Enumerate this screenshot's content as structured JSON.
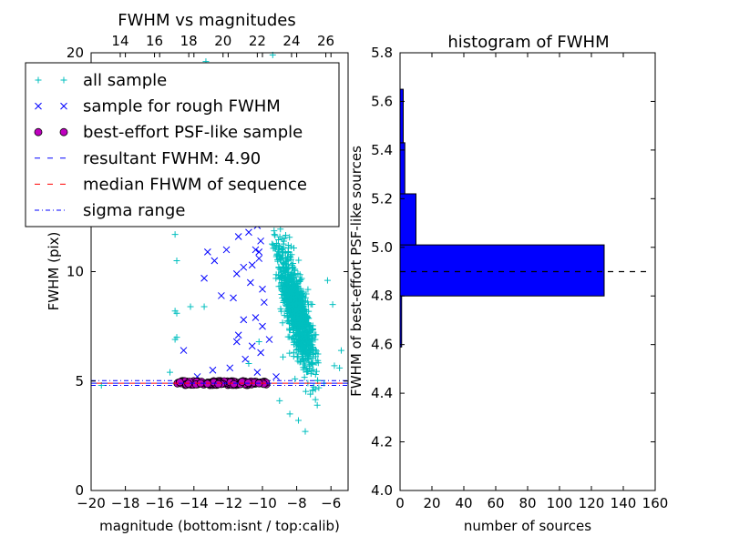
{
  "chart_data": [
    {
      "type": "scatter",
      "title": "FWHM vs magnitudes",
      "xlabel": "magnitude (bottom:isnt / top:calib)",
      "ylabel": "FWHM (pix)",
      "xlim": [
        -20,
        -5
      ],
      "ylim": [
        0,
        20
      ],
      "xticks": [
        "−20",
        "−18",
        "−16",
        "−14",
        "−12",
        "−10",
        "−8",
        "−6"
      ],
      "xtick_values": [
        -20,
        -18,
        -16,
        -14,
        -12,
        -10,
        -8,
        -6
      ],
      "yticks": [
        "0",
        "5",
        "10",
        "20"
      ],
      "ytick_values": [
        0,
        5,
        10,
        20
      ],
      "top_axis": {
        "ticks": [
          "14",
          "16",
          "18",
          "20",
          "22",
          "24",
          "26"
        ],
        "values": [
          14,
          16,
          18,
          20,
          22,
          24,
          26
        ],
        "calib_offset": 32.3
      },
      "legend_position": "upper-left",
      "legend": [
        {
          "label": "all sample",
          "marker": "plus",
          "color": "#00bfbf"
        },
        {
          "label": "sample for rough FWHM",
          "marker": "x",
          "color": "#0000ff"
        },
        {
          "label": "best-effort PSF-like sample",
          "marker": "circle",
          "color": "#bf00bf"
        },
        {
          "label": "resultant FWHM: 4.90",
          "marker": "dashed",
          "color": "#0000ff"
        },
        {
          "label": "median FHWM of sequence",
          "marker": "dashed",
          "color": "#ff0000"
        },
        {
          "label": "sigma range",
          "marker": "dashdot",
          "color": "#0000ff"
        }
      ],
      "reference_lines": {
        "resultant_fwhm": 4.9,
        "median_fwhm": 4.9,
        "sigma_range": [
          4.8,
          5.02
        ]
      },
      "series": [
        {
          "name": "all sample",
          "marker": "plus",
          "color": "#00bfbf",
          "points": [
            [
              -15.1,
              11.7
            ],
            [
              -15.0,
              10.5
            ],
            [
              -15.1,
              8.2
            ],
            [
              -15.0,
              8.1
            ],
            [
              -15.0,
              7.0
            ],
            [
              -15.1,
              6.9
            ],
            [
              -14.2,
              8.4
            ],
            [
              -15.4,
              5.4
            ],
            [
              -13.4,
              8.4
            ],
            [
              -19.4,
              4.8
            ],
            [
              -13.3,
              19.6
            ],
            [
              -9.4,
              19.9
            ],
            [
              -11.3,
              5.0
            ],
            [
              -10.8,
              5.8
            ],
            [
              -10.2,
              6.8
            ],
            [
              -9.9,
              13.1
            ],
            [
              -9.5,
              18.0
            ],
            [
              -9.1,
              17.2
            ],
            [
              -8.7,
              16.1
            ],
            [
              -8.3,
              17.4
            ],
            [
              -7.8,
              15.2
            ],
            [
              -7.4,
              14.1
            ],
            [
              -7.0,
              12.6
            ],
            [
              -6.6,
              12.2
            ],
            [
              -6.2,
              9.6
            ],
            [
              -5.9,
              8.5
            ],
            [
              -5.5,
              5.6
            ],
            [
              -5.4,
              6.4
            ],
            [
              -7.9,
              3.2
            ],
            [
              -7.5,
              2.7
            ],
            [
              -8.4,
              3.5
            ],
            [
              -6.8,
              3.9
            ],
            [
              -9.0,
              4.1
            ],
            [
              -7.2,
              4.4
            ],
            [
              -6.4,
              4.9
            ],
            [
              -8.8,
              6.1
            ],
            [
              -8.1,
              5.1
            ],
            [
              -6.9,
              5.3
            ],
            [
              -5.8,
              5.7
            ]
          ],
          "cloud": {
            "center_x": -8.0,
            "x_spread": 1.1,
            "fwhm_vs_mag": [
              [
                -9.6,
                11.8
              ],
              [
                -8.5,
                9.2
              ],
              [
                -7.5,
                7.2
              ],
              [
                -6.5,
                5.6
              ],
              [
                -5.5,
                5.0
              ]
            ],
            "fwhm_spread": 1.8,
            "count": 1100
          }
        },
        {
          "name": "sample for rough FWHM",
          "marker": "x",
          "color": "#0000ff",
          "points": [
            [
              -13.4,
              9.7
            ],
            [
              -14.6,
              6.4
            ],
            [
              -13.2,
              10.9
            ],
            [
              -12.8,
              10.5
            ],
            [
              -12.4,
              8.9
            ],
            [
              -12.1,
              11.0
            ],
            [
              -11.4,
              11.6
            ],
            [
              -11.1,
              10.2
            ],
            [
              -11.1,
              7.8
            ],
            [
              -10.7,
              13.6
            ],
            [
              -10.6,
              10.3
            ],
            [
              -10.3,
              12.1
            ],
            [
              -10.1,
              11.4
            ],
            [
              -10.0,
              9.2
            ],
            [
              -10.2,
              10.9
            ],
            [
              -11.7,
              8.8
            ],
            [
              -11.4,
              7.1
            ],
            [
              -10.4,
              7.9
            ],
            [
              -10.6,
              6.6
            ],
            [
              -11.0,
              6.0
            ],
            [
              -10.1,
              6.3
            ],
            [
              -10.0,
              7.5
            ],
            [
              -9.9,
              8.6
            ],
            [
              -11.5,
              9.9
            ],
            [
              -11.0,
              13.0
            ],
            [
              -10.5,
              14.9
            ],
            [
              -9.7,
              12.4
            ],
            [
              -9.6,
              15.7
            ],
            [
              -10.2,
              10.6
            ],
            [
              -10.7,
              9.5
            ],
            [
              -12.5,
              13.2
            ],
            [
              -11.9,
              5.6
            ],
            [
              -11.5,
              6.8
            ],
            [
              -10.3,
              5.4
            ],
            [
              -9.6,
              6.9
            ],
            [
              -9.2,
              5.2
            ],
            [
              -13.8,
              5.2
            ],
            [
              -12.9,
              5.5
            ],
            [
              -11.3,
              14.5
            ],
            [
              -10.8,
              11.8
            ],
            [
              -10.4,
              11.0
            ]
          ]
        },
        {
          "name": "best-effort PSF-like sample",
          "marker": "circle",
          "color": "#bf00bf",
          "x_range": [
            -15.1,
            -9.7
          ],
          "fwhm_range": [
            4.82,
            5.0
          ],
          "count": 130
        }
      ]
    },
    {
      "type": "histogram",
      "orientation": "horizontal",
      "title": "histogram of FWHM",
      "xlabel": "number of sources",
      "ylabel": "FWHM of best-effort PSF-like sources",
      "xlim": [
        0,
        160
      ],
      "ylim": [
        4.0,
        5.8
      ],
      "xticks": [
        "0",
        "20",
        "40",
        "60",
        "80",
        "100",
        "120",
        "140",
        "160"
      ],
      "xtick_values": [
        0,
        20,
        40,
        60,
        80,
        100,
        120,
        140,
        160
      ],
      "yticks": [
        "4.0",
        "4.2",
        "4.4",
        "4.6",
        "4.8",
        "5.0",
        "5.2",
        "5.4",
        "5.6",
        "5.8"
      ],
      "ytick_values": [
        4.0,
        4.2,
        4.4,
        4.6,
        4.8,
        5.0,
        5.2,
        5.4,
        5.6,
        5.8
      ],
      "bar_color": "#0000ff",
      "bins": [
        {
          "from": 4.59,
          "to": 4.8,
          "count": 1
        },
        {
          "from": 4.8,
          "to": 5.01,
          "count": 128
        },
        {
          "from": 5.01,
          "to": 5.22,
          "count": 10
        },
        {
          "from": 5.22,
          "to": 5.43,
          "count": 3
        },
        {
          "from": 5.43,
          "to": 5.65,
          "count": 2
        }
      ],
      "reference_line": {
        "value": 4.9,
        "style": "dashed",
        "color": "#000000"
      }
    }
  ]
}
